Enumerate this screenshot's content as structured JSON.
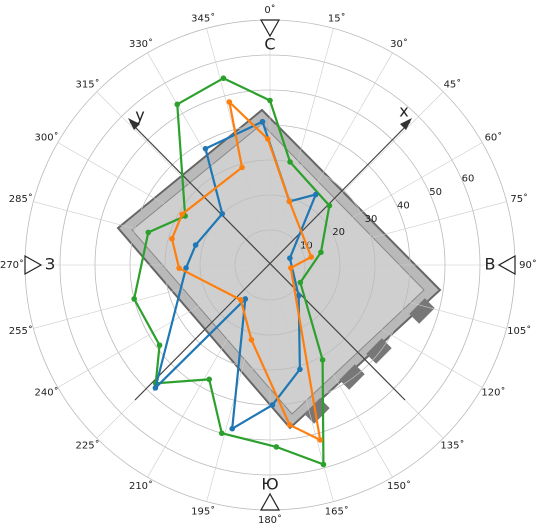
{
  "chart_data": {
    "type": "polar",
    "rlim": [
      0,
      70
    ],
    "rticks": [
      10,
      20,
      30,
      40,
      50,
      60
    ],
    "thetaticks": [
      {
        "value": 0,
        "label": "0˚"
      },
      {
        "value": 15,
        "label": "15˚"
      },
      {
        "value": 30,
        "label": "30˚"
      },
      {
        "value": 45,
        "label": "45˚"
      },
      {
        "value": 60,
        "label": "60˚"
      },
      {
        "value": 75,
        "label": "75˚"
      },
      {
        "value": 90,
        "label": "90˚"
      },
      {
        "value": 105,
        "label": "105˚"
      },
      {
        "value": 120,
        "label": "120˚"
      },
      {
        "value": 135,
        "label": "135˚"
      },
      {
        "value": 150,
        "label": "150˚"
      },
      {
        "value": 165,
        "label": "165˚"
      },
      {
        "value": 180,
        "label": "180˚"
      },
      {
        "value": 195,
        "label": "195˚"
      },
      {
        "value": 210,
        "label": "210˚"
      },
      {
        "value": 225,
        "label": "225˚"
      },
      {
        "value": 240,
        "label": "240˚"
      },
      {
        "value": 255,
        "label": "255˚"
      },
      {
        "value": 270,
        "label": "270˚"
      },
      {
        "value": 285,
        "label": "285˚"
      },
      {
        "value": 300,
        "label": "300˚"
      },
      {
        "value": 315,
        "label": "315˚"
      },
      {
        "value": 330,
        "label": "330˚"
      },
      {
        "value": 345,
        "label": "345˚"
      }
    ],
    "compass": [
      "С",
      "В",
      "Ю",
      "З"
    ],
    "body_axes": [
      "x",
      "y"
    ],
    "series": [
      {
        "color": "#2ca02c",
        "theta": [
          346,
          0,
          11,
          45,
          76,
          120,
          151,
          165,
          178,
          196,
          208,
          224,
          234,
          256,
          285,
          300,
          330
        ],
        "values": [
          55,
          47,
          30,
          24,
          15,
          10,
          31,
          59,
          52,
          50,
          37,
          47,
          39,
          40,
          36,
          28,
          53
        ]
      },
      {
        "color": "#1f77b4",
        "theta": [
          331,
          357,
          17,
          33,
          71,
          137,
          164,
          179,
          193,
          216,
          223,
          268,
          285,
          317
        ],
        "values": [
          38,
          41,
          19,
          24,
          6,
          12,
          31,
          40,
          48,
          12,
          48,
          24,
          22,
          20
        ]
      },
      {
        "color": "#ff7f0e",
        "theta": [
          346,
          359,
          17,
          79,
          98,
          164,
          173,
          194,
          220,
          268,
          285,
          300,
          344
        ],
        "values": [
          48,
          36,
          19,
          12,
          6,
          52,
          46,
          22,
          13,
          26,
          29,
          29,
          29
        ]
      }
    ]
  }
}
